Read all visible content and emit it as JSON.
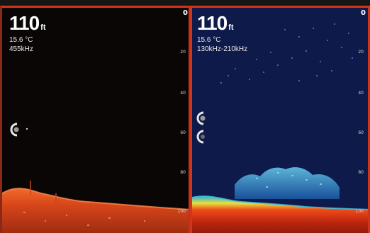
{
  "left_pane": {
    "depth_value": "110",
    "depth_unit": "ft",
    "temperature": "15.6 °C",
    "frequency": "455kHz",
    "scale": [
      "0",
      "20",
      "40",
      "60",
      "80",
      "100"
    ]
  },
  "right_pane": {
    "depth_value": "110",
    "depth_unit": "ft",
    "temperature": "15.6 °C",
    "frequency": "130kHz-210kHz",
    "scale": [
      "0",
      "20",
      "40",
      "60",
      "80",
      "100"
    ]
  },
  "colors": {
    "active_border": "#d2361a",
    "left_bottom": "#e0501c",
    "right_water": "#0e1a4a"
  },
  "icons": {
    "range_marker": "range-marker-icon",
    "zoom_marker": "zoom-marker-icon"
  }
}
